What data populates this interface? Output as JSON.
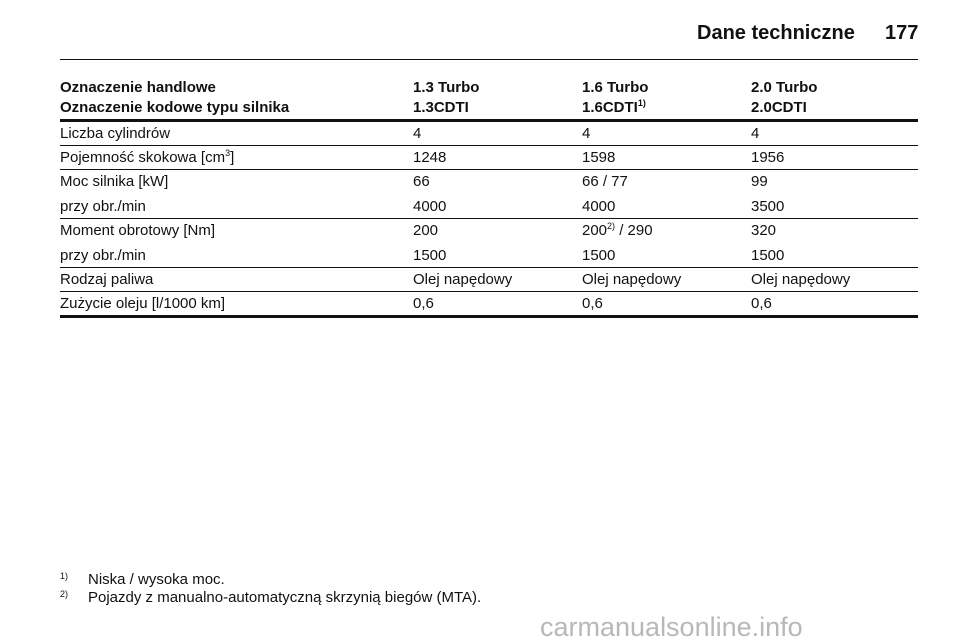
{
  "header": {
    "title": "Dane techniczne",
    "page": "177"
  },
  "table": {
    "header_rows": [
      [
        "Oznaczenie handlowe",
        "1.3 Turbo",
        "1.6 Turbo",
        "2.0 Turbo"
      ],
      [
        "Oznaczenie kodowe typu silnika",
        "1.3CDTI",
        {
          "text": "1.6CDTI",
          "sup": "1)"
        },
        "2.0CDTI"
      ]
    ],
    "groups": [
      [
        [
          "Liczba cylindrów",
          "4",
          "4",
          "4"
        ]
      ],
      [
        [
          {
            "text": "Pojemność skokowa [cm",
            "sup": "3",
            "after": "]"
          },
          "1248",
          "1598",
          "1956"
        ]
      ],
      [
        [
          "Moc silnika [kW]",
          "66",
          "66 / 77",
          "99"
        ],
        [
          "przy obr./min",
          "4000",
          "4000",
          "3500"
        ]
      ],
      [
        [
          "Moment obrotowy [Nm]",
          "200",
          {
            "text": "200",
            "sup": "2)",
            "after": " / 290"
          },
          "320"
        ],
        [
          "przy obr./min",
          "1500",
          "1500",
          "1500"
        ]
      ],
      [
        [
          "Rodzaj paliwa",
          "Olej napędowy",
          "Olej napędowy",
          "Olej napędowy"
        ]
      ],
      [
        [
          "Zużycie oleju [l/1000 km]",
          "0,6",
          "0,6",
          "0,6"
        ]
      ]
    ]
  },
  "footnotes": [
    {
      "mark": "1)",
      "text": "Niska / wysoka moc."
    },
    {
      "mark": "2)",
      "text": "Pojazdy z manualno-automatyczną skrzynią biegów (MTA)."
    }
  ],
  "watermark": "carmanualsonline.info"
}
